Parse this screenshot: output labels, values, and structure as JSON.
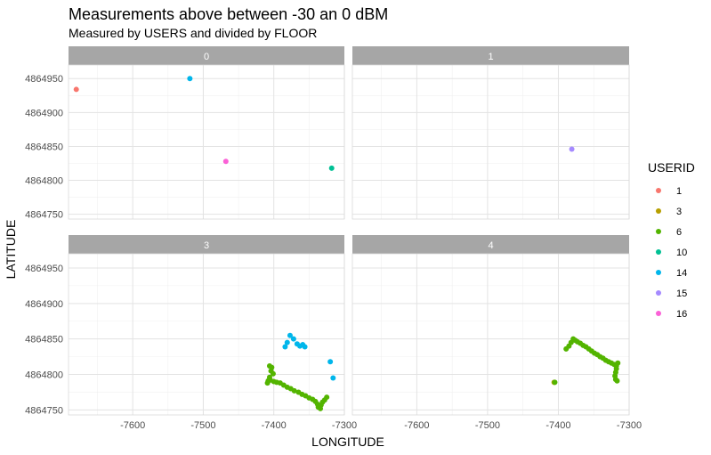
{
  "chart_data": {
    "type": "scatter",
    "title": "Measurements above between -30 an 0 dBM",
    "subtitle": "Measured by USERS and divided by FLOOR",
    "xlabel": "LONGITUDE",
    "ylabel": "LATITUDE",
    "xlim": [
      -7691,
      -7300
    ],
    "ylim": [
      4864743,
      4864970
    ],
    "x_ticks": [
      -7600,
      -7500,
      -7400,
      -7300
    ],
    "y_ticks": [
      4864750,
      4864800,
      4864850,
      4864900,
      4864950
    ],
    "grid": true,
    "legend_position": "right",
    "legend_title": "USERID",
    "users": [
      {
        "id": "1",
        "color": "#F8766D"
      },
      {
        "id": "3",
        "color": "#B79F00"
      },
      {
        "id": "6",
        "color": "#53B400"
      },
      {
        "id": "10",
        "color": "#00C094"
      },
      {
        "id": "14",
        "color": "#00B6EB"
      },
      {
        "id": "15",
        "color": "#A58AFF"
      },
      {
        "id": "16",
        "color": "#FB61D7"
      }
    ],
    "panels": [
      {
        "floor": "0",
        "points": [
          {
            "user": "1",
            "x": -7680,
            "y": 4864934
          },
          {
            "user": "14",
            "x": -7519,
            "y": 4864950
          },
          {
            "user": "16",
            "x": -7468,
            "y": 4864828
          },
          {
            "user": "10",
            "x": -7318,
            "y": 4864818
          }
        ]
      },
      {
        "floor": "1",
        "points": [
          {
            "user": "15",
            "x": -7381,
            "y": 4864846
          }
        ]
      },
      {
        "floor": "3",
        "points": [
          {
            "user": "6",
            "x": -7406,
            "y": 4864812
          },
          {
            "user": "6",
            "x": -7403,
            "y": 4864810
          },
          {
            "user": "6",
            "x": -7404,
            "y": 4864805
          },
          {
            "user": "6",
            "x": -7401,
            "y": 4864801
          },
          {
            "user": "6",
            "x": -7406,
            "y": 4864796
          },
          {
            "user": "6",
            "x": -7408,
            "y": 4864791
          },
          {
            "user": "6",
            "x": -7409,
            "y": 4864788
          },
          {
            "user": "6",
            "x": -7405,
            "y": 4864792
          },
          {
            "user": "6",
            "x": -7400,
            "y": 4864790
          },
          {
            "user": "6",
            "x": -7396,
            "y": 4864789
          },
          {
            "user": "6",
            "x": -7391,
            "y": 4864788
          },
          {
            "user": "6",
            "x": -7386,
            "y": 4864785
          },
          {
            "user": "6",
            "x": -7381,
            "y": 4864782
          },
          {
            "user": "6",
            "x": -7376,
            "y": 4864780
          },
          {
            "user": "6",
            "x": -7371,
            "y": 4864777
          },
          {
            "user": "6",
            "x": -7365,
            "y": 4864775
          },
          {
            "user": "6",
            "x": -7360,
            "y": 4864772
          },
          {
            "user": "6",
            "x": -7355,
            "y": 4864770
          },
          {
            "user": "6",
            "x": -7350,
            "y": 4864767
          },
          {
            "user": "6",
            "x": -7345,
            "y": 4864765
          },
          {
            "user": "6",
            "x": -7341,
            "y": 4864762
          },
          {
            "user": "6",
            "x": -7338,
            "y": 4864758
          },
          {
            "user": "6",
            "x": -7337,
            "y": 4864754
          },
          {
            "user": "6",
            "x": -7334,
            "y": 4864752
          },
          {
            "user": "6",
            "x": -7333,
            "y": 4864757
          },
          {
            "user": "6",
            "x": -7331,
            "y": 4864761
          },
          {
            "user": "6",
            "x": -7328,
            "y": 4864764
          },
          {
            "user": "6",
            "x": -7325,
            "y": 4864768
          },
          {
            "user": "14",
            "x": -7377,
            "y": 4864855
          },
          {
            "user": "14",
            "x": -7372,
            "y": 4864850
          },
          {
            "user": "14",
            "x": -7381,
            "y": 4864845
          },
          {
            "user": "14",
            "x": -7384,
            "y": 4864839
          },
          {
            "user": "14",
            "x": -7367,
            "y": 4864843
          },
          {
            "user": "14",
            "x": -7363,
            "y": 4864840
          },
          {
            "user": "14",
            "x": -7359,
            "y": 4864842
          },
          {
            "user": "14",
            "x": -7356,
            "y": 4864839
          },
          {
            "user": "14",
            "x": -7320,
            "y": 4864818
          },
          {
            "user": "14",
            "x": -7316,
            "y": 4864795
          }
        ]
      },
      {
        "floor": "4",
        "points": [
          {
            "user": "3",
            "x": -7406,
            "y": 4864789
          },
          {
            "user": "6",
            "x": -7405,
            "y": 4864789
          },
          {
            "user": "6",
            "x": -7389,
            "y": 4864836
          },
          {
            "user": "6",
            "x": -7385,
            "y": 4864840
          },
          {
            "user": "6",
            "x": -7382,
            "y": 4864845
          },
          {
            "user": "6",
            "x": -7379,
            "y": 4864850
          },
          {
            "user": "6",
            "x": -7376,
            "y": 4864848
          },
          {
            "user": "6",
            "x": -7373,
            "y": 4864846
          },
          {
            "user": "6",
            "x": -7369,
            "y": 4864844
          },
          {
            "user": "6",
            "x": -7365,
            "y": 4864841
          },
          {
            "user": "6",
            "x": -7361,
            "y": 4864839
          },
          {
            "user": "6",
            "x": -7357,
            "y": 4864836
          },
          {
            "user": "6",
            "x": -7353,
            "y": 4864833
          },
          {
            "user": "6",
            "x": -7349,
            "y": 4864830
          },
          {
            "user": "6",
            "x": -7345,
            "y": 4864828
          },
          {
            "user": "6",
            "x": -7341,
            "y": 4864825
          },
          {
            "user": "6",
            "x": -7337,
            "y": 4864823
          },
          {
            "user": "6",
            "x": -7333,
            "y": 4864820
          },
          {
            "user": "6",
            "x": -7329,
            "y": 4864818
          },
          {
            "user": "6",
            "x": -7325,
            "y": 4864816
          },
          {
            "user": "6",
            "x": -7321,
            "y": 4864814
          },
          {
            "user": "6",
            "x": -7318,
            "y": 4864812
          },
          {
            "user": "6",
            "x": -7316,
            "y": 4864816
          },
          {
            "user": "6",
            "x": -7318,
            "y": 4864808
          },
          {
            "user": "6",
            "x": -7319,
            "y": 4864803
          },
          {
            "user": "6",
            "x": -7320,
            "y": 4864798
          },
          {
            "user": "6",
            "x": -7319,
            "y": 4864793
          },
          {
            "user": "6",
            "x": -7317,
            "y": 4864791
          }
        ]
      }
    ]
  }
}
